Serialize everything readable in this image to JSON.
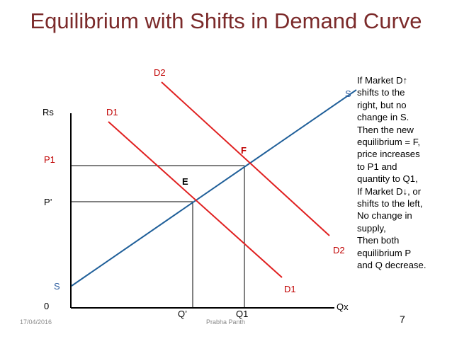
{
  "slide": {
    "title": "Equilibrium with Shifts in Demand Curve",
    "date": "17/04/2016",
    "author": "Prabha Panth",
    "page_number": "7"
  },
  "diagram": {
    "y_axis_label": "Rs",
    "x_axis_label": "Qx",
    "origin_label": "0",
    "price_labels": {
      "p1": "P1",
      "p_prime": "P’"
    },
    "quantity_labels": {
      "q_prime": "Q’",
      "q1": "Q1"
    },
    "supply_labels": {
      "top": "S",
      "bottom": "S"
    },
    "demand_d1_labels": {
      "top": "D1",
      "bottom": "D1"
    },
    "demand_d2_labels": {
      "top": "D2",
      "bottom": "D2"
    },
    "points": {
      "e": "E",
      "f": "F"
    },
    "colors": {
      "supply": "#1f5f99",
      "demand": "#e02020",
      "axis": "#000000",
      "label_red": "#c00000",
      "label_blue": "#2f5fa0"
    }
  },
  "note": {
    "lines": [
      "If Market D↑",
      "shifts to the",
      "right, but no",
      "change in S.",
      "Then the new",
      "equilibrium = F,",
      "price increases",
      "to P1 and",
      "quantity to Q1,",
      "If Market D↓, or",
      "shifts to the left,",
      "No change in",
      "supply,",
      "Then both",
      "equilibrium P",
      "and Q decrease."
    ]
  }
}
